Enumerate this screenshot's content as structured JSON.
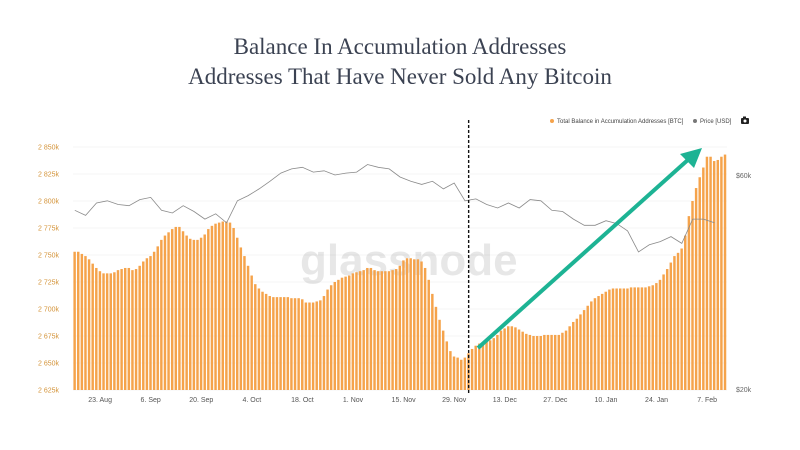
{
  "title": {
    "line1": "Balance In Accumulation Addresses",
    "line2": "Addresses That Have Never Sold Any Bitcoin"
  },
  "watermark": "glassnode",
  "legend": {
    "series1": "Total Balance in Accumulation Addresses [BTC]",
    "series2": "Price [USD]",
    "camera_icon": "camera-icon"
  },
  "colors": {
    "bars": "#f5a34b",
    "price": "#8a8a8a",
    "arrow": "#1db394",
    "marker": "#111111"
  },
  "chart_data": {
    "type": "bar",
    "grid": true,
    "legend_position": "top-right",
    "y_left": {
      "ticks": [
        "2 625k",
        "2 650k",
        "2 675k",
        "2 700k",
        "2 725k",
        "2 750k",
        "2 775k",
        "2 800k",
        "2 825k",
        "2 850k"
      ],
      "range_k": [
        2625,
        2850
      ]
    },
    "y_right": {
      "ticks": [
        "$20k",
        "$60k"
      ],
      "range_k": [
        20,
        60
      ],
      "scale": "log"
    },
    "x_ticks": [
      {
        "label": "23. Aug",
        "index": 7
      },
      {
        "label": "6. Sep",
        "index": 21
      },
      {
        "label": "20. Sep",
        "index": 35
      },
      {
        "label": "4. Oct",
        "index": 49
      },
      {
        "label": "18. Oct",
        "index": 63
      },
      {
        "label": "1. Nov",
        "index": 77
      },
      {
        "label": "15. Nov",
        "index": 91
      },
      {
        "label": "29. Nov",
        "index": 105
      },
      {
        "label": "13. Dec",
        "index": 119
      },
      {
        "label": "27. Dec",
        "index": 133
      },
      {
        "label": "10. Jan",
        "index": 147
      },
      {
        "label": "24. Jan",
        "index": 161
      },
      {
        "label": "7. Feb",
        "index": 175
      }
    ],
    "marker_index": 109.5,
    "balance_k": [
      2753,
      2753,
      2751,
      2749,
      2746,
      2742,
      2738,
      2735,
      2733,
      2733,
      2733,
      2734,
      2736,
      2737,
      2738,
      2738,
      2736,
      2737,
      2740,
      2744,
      2747,
      2749,
      2753,
      2758,
      2764,
      2768,
      2771,
      2774,
      2776,
      2776,
      2772,
      2768,
      2765,
      2764,
      2764,
      2766,
      2769,
      2774,
      2777,
      2779,
      2780,
      2781,
      2781,
      2780,
      2775,
      2766,
      2757,
      2749,
      2740,
      2731,
      2723,
      2719,
      2716,
      2714,
      2712,
      2711,
      2711,
      2711,
      2711,
      2711,
      2710,
      2710,
      2710,
      2709,
      2706,
      2706,
      2706,
      2707,
      2708,
      2712,
      2718,
      2722,
      2725,
      2727,
      2729,
      2730,
      2731,
      2733,
      2734,
      2735,
      2736,
      2738,
      2738,
      2736,
      2735,
      2735,
      2735,
      2735,
      2736,
      2737,
      2740,
      2745,
      2747,
      2747,
      2746,
      2746,
      2744,
      2738,
      2727,
      2714,
      2702,
      2690,
      2680,
      2670,
      2661,
      2656,
      2655,
      2653,
      2655,
      2659,
      2663,
      2666,
      2668,
      2669,
      2670,
      2671,
      2673,
      2676,
      2680,
      2682,
      2684,
      2684,
      2683,
      2681,
      2679,
      2677,
      2676,
      2675,
      2675,
      2675,
      2676,
      2676,
      2676,
      2676,
      2676,
      2678,
      2680,
      2684,
      2688,
      2691,
      2695,
      2699,
      2703,
      2707,
      2710,
      2712,
      2714,
      2716,
      2718,
      2719,
      2719,
      2719,
      2719,
      2719,
      2720,
      2720,
      2720,
      2720,
      2720,
      2721,
      2722,
      2724,
      2727,
      2732,
      2737,
      2743,
      2749,
      2752,
      2756,
      2768,
      2786,
      2800,
      2812,
      2822,
      2831,
      2841,
      2841,
      2837,
      2838,
      2841,
      2843
    ],
    "price_step_days": 3,
    "price_k": [
      50.1,
      48.8,
      52.0,
      52.6,
      51.6,
      51.3,
      52.9,
      53.5,
      50.1,
      49.4,
      51.3,
      49.8,
      47.9,
      49.2,
      47.0,
      52.6,
      54.0,
      55.9,
      58.1,
      60.6,
      61.9,
      62.4,
      60.9,
      61.3,
      60.0,
      60.6,
      60.9,
      63.3,
      62.4,
      61.9,
      59.4,
      58.1,
      57.2,
      58.1,
      55.9,
      57.6,
      52.6,
      53.1,
      51.6,
      50.7,
      52.0,
      50.7,
      52.9,
      52.6,
      50.1,
      49.8,
      47.9,
      46.4,
      46.4,
      47.5,
      46.8,
      45.1,
      40.5,
      42.0,
      42.7,
      43.8,
      42.3,
      47.9,
      47.9,
      47.0
    ]
  }
}
